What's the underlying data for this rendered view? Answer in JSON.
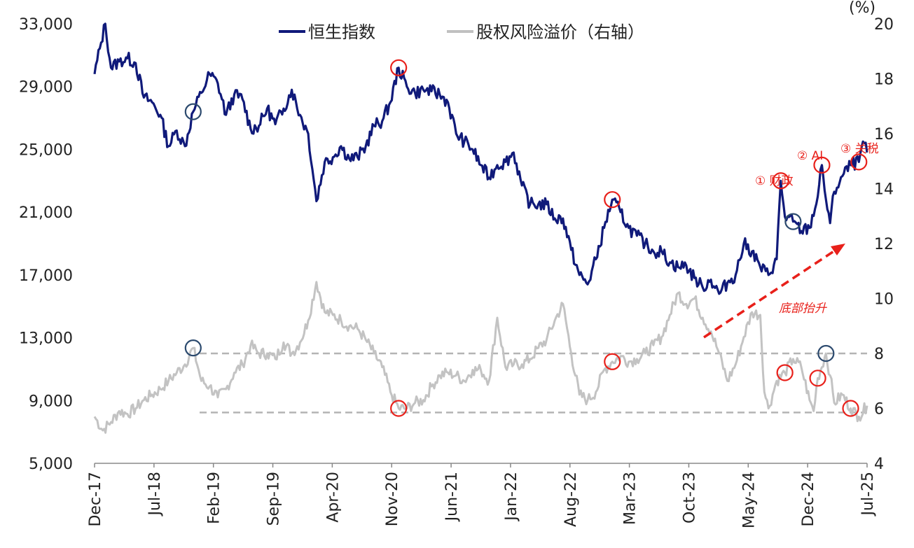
{
  "chart_data": {
    "type": "line",
    "title": "",
    "legend": [
      {
        "name": "恒生指数",
        "color": "#101a7a"
      },
      {
        "name": "股权风险溢价（右轴）",
        "color": "#c0c0c0"
      }
    ],
    "y_left": {
      "range": [
        5000,
        33000
      ],
      "ticks": [
        "33,000",
        "29,000",
        "25,000",
        "21,000",
        "17,000",
        "13,000",
        "9,000",
        "5,000"
      ]
    },
    "y_right": {
      "range": [
        4,
        20
      ],
      "unit_label": "(%)",
      "ticks": [
        "20",
        "18",
        "16",
        "14",
        "12",
        "10",
        "8",
        "6",
        "4"
      ]
    },
    "x_ticks": [
      "Dec-17",
      "Jul-18",
      "Feb-19",
      "Sep-19",
      "Apr-20",
      "Nov-20",
      "Jun-21",
      "Jan-22",
      "Aug-22",
      "Mar-23",
      "Oct-23",
      "May-24",
      "Dec-24",
      "Jul-25"
    ],
    "reference_lines_right_axis": [
      8.0,
      5.85
    ],
    "annotations": {
      "event1": "① 财政",
      "event2": "② AI",
      "event3": "③ 关税",
      "arrow_label": "底部抬升"
    },
    "series": [
      {
        "name": "恒生指数",
        "axis": "left",
        "points": [
          [
            0,
            29800
          ],
          [
            0.8,
            31800
          ],
          [
            1.3,
            33000
          ],
          [
            2.0,
            30200
          ],
          [
            3.0,
            30600
          ],
          [
            4.0,
            30800
          ],
          [
            5.0,
            30500
          ],
          [
            6.0,
            28300
          ],
          [
            7.0,
            28000
          ],
          [
            8.0,
            27200
          ],
          [
            9.0,
            25200
          ],
          [
            10.0,
            26200
          ],
          [
            11.0,
            25200
          ],
          [
            12.0,
            27400
          ],
          [
            13.0,
            28600
          ],
          [
            14.0,
            29800
          ],
          [
            15.0,
            29200
          ],
          [
            16.0,
            27200
          ],
          [
            17.0,
            28500
          ],
          [
            18.0,
            28200
          ],
          [
            19.0,
            26300
          ],
          [
            20.0,
            26500
          ],
          [
            21.0,
            27600
          ],
          [
            22.0,
            26600
          ],
          [
            23.0,
            27600
          ],
          [
            24.0,
            28800
          ],
          [
            25.0,
            27200
          ],
          [
            26.0,
            26000
          ],
          [
            27.0,
            21700
          ],
          [
            28.0,
            24200
          ],
          [
            29.0,
            24500
          ],
          [
            30.0,
            25200
          ],
          [
            31.0,
            24400
          ],
          [
            32.0,
            24500
          ],
          [
            33.0,
            25200
          ],
          [
            34.0,
            26500
          ],
          [
            35.0,
            26800
          ],
          [
            36.0,
            28000
          ],
          [
            37.0,
            30200
          ],
          [
            38.0,
            29000
          ],
          [
            39.0,
            28600
          ],
          [
            40.0,
            28800
          ],
          [
            41.0,
            28700
          ],
          [
            42.0,
            28500
          ],
          [
            43.0,
            28000
          ],
          [
            44.0,
            26000
          ],
          [
            45.0,
            25500
          ],
          [
            46.0,
            25000
          ],
          [
            47.0,
            24000
          ],
          [
            48.0,
            23200
          ],
          [
            49.0,
            24000
          ],
          [
            50.0,
            24200
          ],
          [
            51.0,
            24800
          ],
          [
            52.0,
            22700
          ],
          [
            53.0,
            21500
          ],
          [
            54.0,
            21500
          ],
          [
            55.0,
            21500
          ],
          [
            56.0,
            20600
          ],
          [
            57.0,
            20600
          ],
          [
            58.0,
            18600
          ],
          [
            59.0,
            17000
          ],
          [
            60.0,
            16400
          ],
          [
            61.0,
            18000
          ],
          [
            62.0,
            20000
          ],
          [
            63.0,
            21800
          ],
          [
            64.0,
            21000
          ],
          [
            65.0,
            20000
          ],
          [
            66.0,
            19500
          ],
          [
            67.0,
            19000
          ],
          [
            68.0,
            18500
          ],
          [
            69.0,
            18500
          ],
          [
            70.0,
            17800
          ],
          [
            71.0,
            17500
          ],
          [
            72.0,
            17600
          ],
          [
            73.0,
            16800
          ],
          [
            74.0,
            16200
          ],
          [
            75.0,
            16700
          ],
          [
            76.0,
            15800
          ],
          [
            77.0,
            16500
          ],
          [
            78.0,
            17000
          ],
          [
            79.0,
            19000
          ],
          [
            80.0,
            18500
          ],
          [
            81.0,
            17500
          ],
          [
            82.0,
            17000
          ],
          [
            83.0,
            18000
          ],
          [
            83.5,
            23000
          ],
          [
            84.0,
            20700
          ],
          [
            85.0,
            20400
          ],
          [
            86.0,
            19800
          ],
          [
            87.0,
            20000
          ],
          [
            88.0,
            22000
          ],
          [
            88.5,
            24000
          ],
          [
            89.0,
            21800
          ],
          [
            89.5,
            20300
          ],
          [
            90.0,
            22300
          ],
          [
            91.0,
            23300
          ],
          [
            92.0,
            24000
          ],
          [
            93.0,
            24200
          ],
          [
            93.5,
            25500
          ],
          [
            94.0,
            24800
          ]
        ]
      },
      {
        "name": "股权风险溢价（右轴）",
        "axis": "right",
        "points": [
          [
            0,
            5.7
          ],
          [
            1.0,
            5.2
          ],
          [
            2.0,
            5.5
          ],
          [
            3.0,
            5.9
          ],
          [
            4.0,
            5.8
          ],
          [
            5.0,
            6.0
          ],
          [
            6.0,
            6.3
          ],
          [
            7.0,
            6.5
          ],
          [
            8.0,
            6.7
          ],
          [
            9.0,
            7.0
          ],
          [
            10.0,
            7.3
          ],
          [
            11.0,
            7.6
          ],
          [
            12.0,
            8.2
          ],
          [
            13.0,
            7.0
          ],
          [
            14.0,
            6.8
          ],
          [
            15.0,
            6.4
          ],
          [
            16.0,
            6.7
          ],
          [
            17.0,
            7.3
          ],
          [
            18.0,
            7.6
          ],
          [
            19.0,
            8.3
          ],
          [
            20.0,
            8.0
          ],
          [
            21.0,
            8.0
          ],
          [
            22.0,
            7.8
          ],
          [
            23.0,
            8.4
          ],
          [
            24.0,
            8.0
          ],
          [
            25.0,
            8.4
          ],
          [
            26.0,
            9.2
          ],
          [
            27.0,
            10.6
          ],
          [
            28.0,
            9.5
          ],
          [
            29.0,
            9.4
          ],
          [
            30.0,
            9.2
          ],
          [
            31.0,
            9.0
          ],
          [
            32.0,
            8.9
          ],
          [
            33.0,
            8.5
          ],
          [
            34.0,
            8.0
          ],
          [
            35.0,
            7.5
          ],
          [
            36.0,
            6.6
          ],
          [
            37.0,
            6.0
          ],
          [
            38.0,
            6.0
          ],
          [
            39.0,
            6.2
          ],
          [
            40.0,
            6.3
          ],
          [
            41.0,
            6.8
          ],
          [
            42.0,
            7.2
          ],
          [
            43.0,
            7.3
          ],
          [
            44.0,
            7.2
          ],
          [
            45.0,
            7.0
          ],
          [
            46.0,
            7.4
          ],
          [
            47.0,
            7.4
          ],
          [
            48.0,
            7.0
          ],
          [
            49.0,
            9.3
          ],
          [
            50.0,
            7.5
          ],
          [
            51.0,
            7.6
          ],
          [
            52.0,
            7.6
          ],
          [
            53.0,
            7.8
          ],
          [
            54.0,
            8.2
          ],
          [
            55.0,
            8.5
          ],
          [
            56.0,
            9.2
          ],
          [
            57.0,
            9.8
          ],
          [
            58.0,
            8.0
          ],
          [
            59.0,
            6.5
          ],
          [
            60.0,
            6.3
          ],
          [
            61.0,
            6.6
          ],
          [
            62.0,
            7.4
          ],
          [
            63.0,
            7.7
          ],
          [
            64.0,
            7.9
          ],
          [
            65.0,
            7.7
          ],
          [
            66.0,
            7.8
          ],
          [
            67.0,
            8.0
          ],
          [
            68.0,
            8.3
          ],
          [
            69.0,
            8.6
          ],
          [
            70.0,
            9.4
          ],
          [
            71.0,
            10.2
          ],
          [
            72.0,
            9.8
          ],
          [
            73.0,
            10.0
          ],
          [
            74.0,
            9.3
          ],
          [
            75.0,
            8.8
          ],
          [
            76.0,
            8.0
          ],
          [
            77.0,
            7.0
          ],
          [
            78.0,
            7.6
          ],
          [
            79.0,
            8.6
          ],
          [
            80.0,
            9.5
          ],
          [
            81.0,
            9.4
          ],
          [
            81.5,
            6.6
          ],
          [
            82.0,
            6.0
          ],
          [
            83.0,
            7.0
          ],
          [
            84.0,
            7.3
          ],
          [
            85.0,
            7.8
          ],
          [
            86.0,
            7.5
          ],
          [
            87.0,
            6.3
          ],
          [
            87.5,
            5.9
          ],
          [
            88.0,
            7.1
          ],
          [
            89.0,
            8.0
          ],
          [
            89.5,
            7.2
          ],
          [
            90.0,
            6.2
          ],
          [
            91.0,
            6.5
          ],
          [
            92.0,
            6.0
          ],
          [
            93.0,
            5.7
          ],
          [
            94.0,
            6.1
          ]
        ]
      }
    ],
    "circled_points": [
      {
        "series": "恒生指数",
        "x": 12.0,
        "color": "#2c4a6e"
      },
      {
        "series": "恒生指数",
        "x": 37.0,
        "color": "#e8201a"
      },
      {
        "series": "恒生指数",
        "x": 63.0,
        "color": "#e8201a"
      },
      {
        "series": "恒生指数",
        "x": 83.5,
        "color": "#e8201a"
      },
      {
        "series": "恒生指数",
        "x": 85.0,
        "color": "#2c4a6e"
      },
      {
        "series": "恒生指数",
        "x": 88.5,
        "color": "#e8201a"
      },
      {
        "series": "恒生指数",
        "x": 93.0,
        "color": "#e8201a"
      },
      {
        "series": "股权风险溢价（右轴）",
        "x": 12.0,
        "color": "#2c4a6e"
      },
      {
        "series": "股权风险溢价（右轴）",
        "x": 37.0,
        "color": "#e8201a"
      },
      {
        "series": "股权风险溢价（右轴）",
        "x": 63.0,
        "color": "#e8201a"
      },
      {
        "series": "股权风险溢价（右轴）",
        "x": 84.0,
        "color": "#e8201a"
      },
      {
        "series": "股权风险溢价（右轴）",
        "x": 88.0,
        "color": "#e8201a"
      },
      {
        "series": "股权风险溢价（右轴）",
        "x": 89.0,
        "color": "#2c4a6e"
      },
      {
        "series": "股权风险溢价（右轴）",
        "x": 92.0,
        "color": "#e8201a"
      }
    ]
  }
}
